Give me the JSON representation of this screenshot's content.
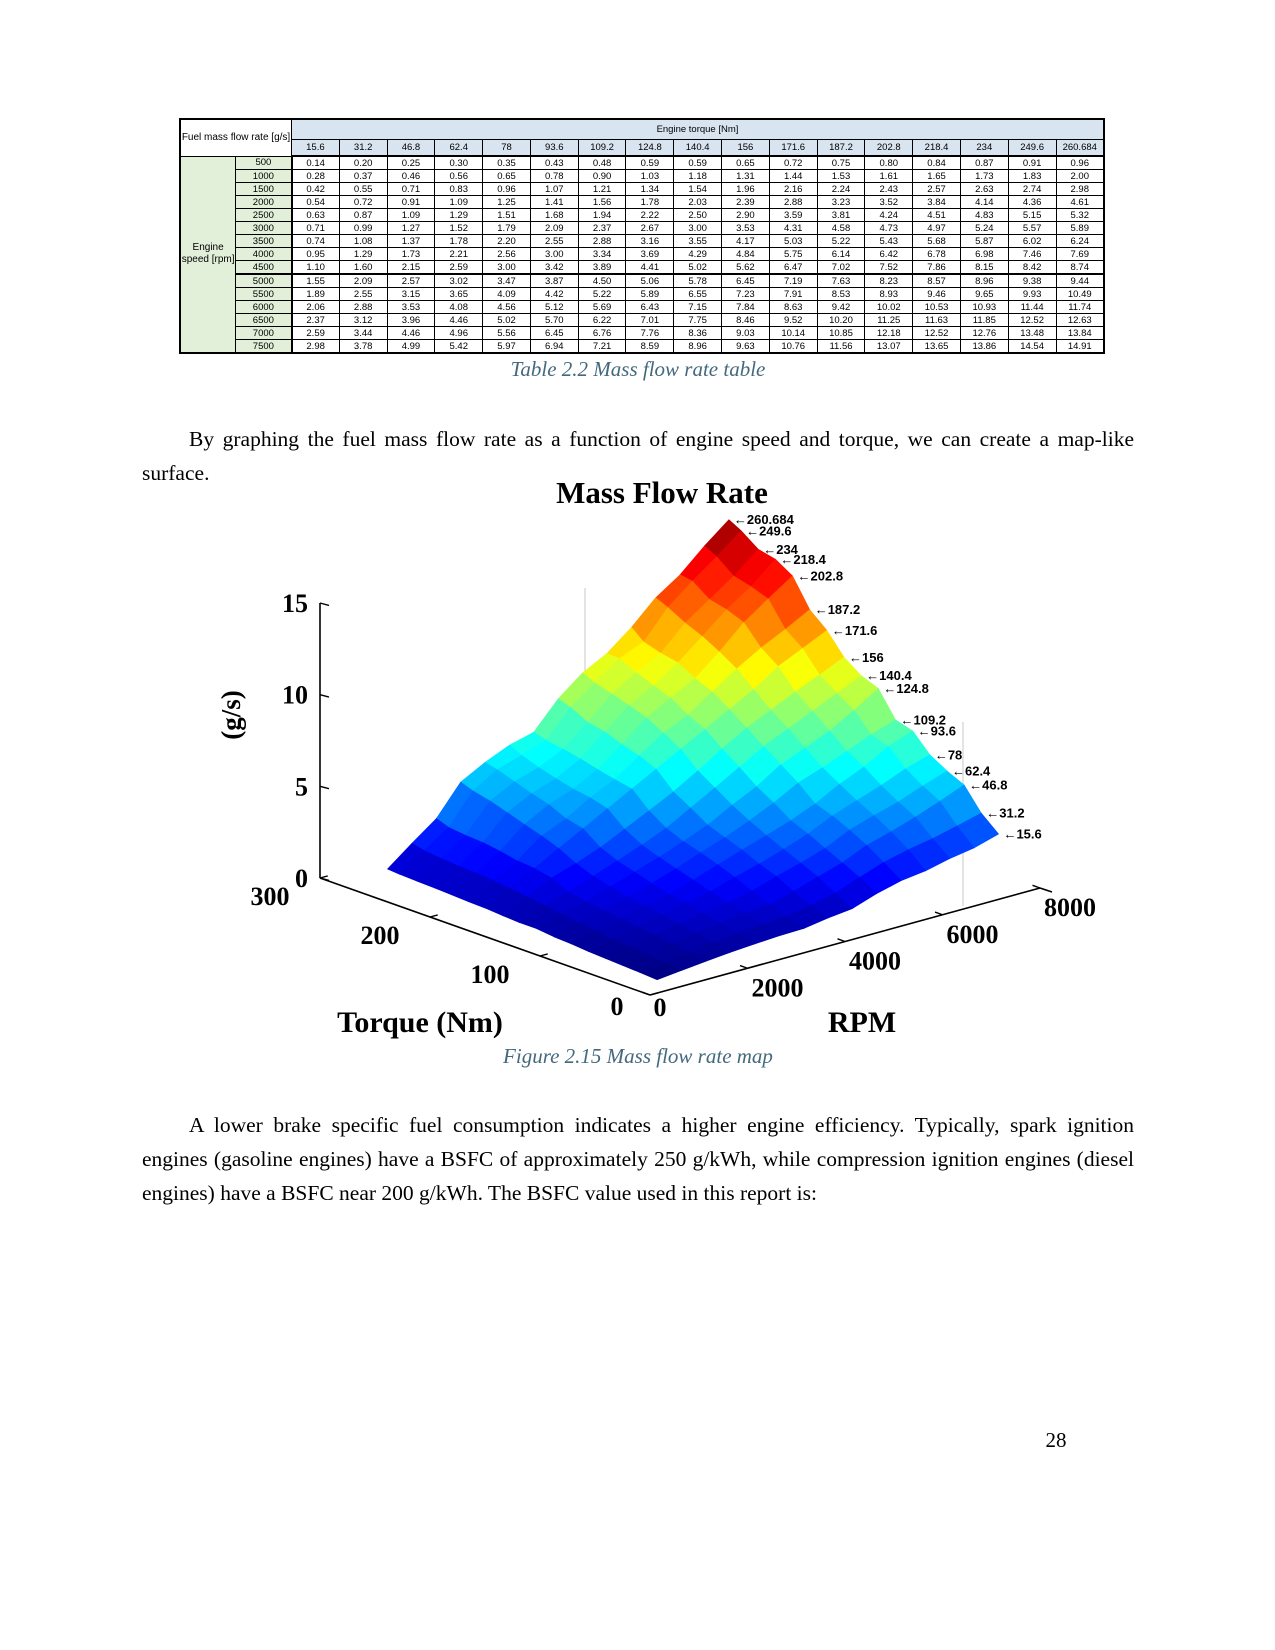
{
  "page": {
    "number": "28"
  },
  "table": {
    "caption": "Table 2.2 Mass flow rate table",
    "corner_label": "Fuel mass flow rate [g/s]",
    "column_group_label": "Engine torque [Nm]",
    "row_group_label": "Engine speed [rpm]"
  },
  "paragraphs": {
    "p1": "By graphing the fuel mass flow rate as a function of engine speed and torque, we can create a map-like surface.",
    "p2": "A lower brake specific fuel consumption indicates a higher engine efficiency. Typically, spark ignition engines (gasoline engines) have a BSFC of approximately 250 g/kWh, while compression ignition engines (diesel engines) have a BSFC near 200 g/kWh. The BSFC value used in this report is:"
  },
  "figure": {
    "caption": "Figure 2.15 Mass flow rate map"
  },
  "chart_data": {
    "type": "surface",
    "title": "Mass Flow Rate",
    "xlabel": "RPM",
    "ylabel": "Torque (Nm)",
    "zlabel": "(g/s)",
    "colormap": "jet",
    "edge_annotation_arrow": "←",
    "x_rpm": [
      500,
      1000,
      1500,
      2000,
      2500,
      3000,
      3500,
      4000,
      4500,
      5000,
      5500,
      6000,
      6500,
      7000,
      7500
    ],
    "y_torque": [
      15.6,
      31.2,
      46.8,
      62.4,
      78,
      93.6,
      109.2,
      124.8,
      140.4,
      156,
      171.6,
      187.2,
      202.8,
      218.4,
      234,
      249.6,
      260.684
    ],
    "z_gps": [
      [
        0.14,
        0.2,
        0.25,
        0.3,
        0.35,
        0.43,
        0.48,
        0.59,
        0.59,
        0.65,
        0.72,
        0.75,
        0.8,
        0.84,
        0.87,
        0.91,
        0.96
      ],
      [
        0.28,
        0.37,
        0.46,
        0.56,
        0.65,
        0.78,
        0.9,
        1.03,
        1.18,
        1.31,
        1.44,
        1.53,
        1.61,
        1.65,
        1.73,
        1.83,
        2.0
      ],
      [
        0.42,
        0.55,
        0.71,
        0.83,
        0.96,
        1.07,
        1.21,
        1.34,
        1.54,
        1.96,
        2.16,
        2.24,
        2.43,
        2.57,
        2.63,
        2.74,
        2.98
      ],
      [
        0.54,
        0.72,
        0.91,
        1.09,
        1.25,
        1.41,
        1.56,
        1.78,
        2.03,
        2.39,
        2.88,
        3.23,
        3.52,
        3.84,
        4.14,
        4.36,
        4.61
      ],
      [
        0.63,
        0.87,
        1.09,
        1.29,
        1.51,
        1.68,
        1.94,
        2.22,
        2.5,
        2.9,
        3.59,
        3.81,
        4.24,
        4.51,
        4.83,
        5.15,
        5.32
      ],
      [
        0.71,
        0.99,
        1.27,
        1.52,
        1.79,
        2.09,
        2.37,
        2.67,
        3.0,
        3.53,
        4.31,
        4.58,
        4.73,
        4.97,
        5.24,
        5.57,
        5.89
      ],
      [
        0.74,
        1.08,
        1.37,
        1.78,
        2.2,
        2.55,
        2.88,
        3.16,
        3.55,
        4.17,
        5.03,
        5.22,
        5.43,
        5.68,
        5.87,
        6.02,
        6.24
      ],
      [
        0.95,
        1.29,
        1.73,
        2.21,
        2.56,
        3.0,
        3.34,
        3.69,
        4.29,
        4.84,
        5.75,
        6.14,
        6.42,
        6.78,
        6.98,
        7.46,
        7.69
      ],
      [
        1.1,
        1.6,
        2.15,
        2.59,
        3.0,
        3.42,
        3.89,
        4.41,
        5.02,
        5.62,
        6.47,
        7.02,
        7.52,
        7.86,
        8.15,
        8.42,
        8.74
      ],
      [
        1.55,
        2.09,
        2.57,
        3.02,
        3.47,
        3.87,
        4.5,
        5.06,
        5.78,
        6.45,
        7.19,
        7.63,
        8.23,
        8.57,
        8.96,
        9.38,
        9.44
      ],
      [
        1.89,
        2.55,
        3.15,
        3.65,
        4.09,
        4.42,
        5.22,
        5.89,
        6.55,
        7.23,
        7.91,
        8.53,
        8.93,
        9.46,
        9.65,
        9.93,
        10.49
      ],
      [
        2.06,
        2.88,
        3.53,
        4.08,
        4.56,
        5.12,
        5.69,
        6.43,
        7.15,
        7.84,
        8.63,
        9.42,
        10.02,
        10.53,
        10.93,
        11.44,
        11.74
      ],
      [
        2.37,
        3.12,
        3.96,
        4.46,
        5.02,
        5.7,
        6.22,
        7.01,
        7.75,
        8.46,
        9.52,
        10.2,
        11.25,
        11.63,
        11.85,
        12.52,
        12.63
      ],
      [
        2.59,
        3.44,
        4.46,
        4.96,
        5.56,
        6.45,
        6.76,
        7.76,
        8.36,
        9.03,
        10.14,
        10.85,
        12.18,
        12.52,
        12.76,
        13.48,
        13.84
      ],
      [
        2.98,
        3.78,
        4.99,
        5.42,
        5.97,
        6.94,
        7.21,
        8.59,
        8.96,
        9.63,
        10.76,
        11.56,
        13.07,
        13.65,
        13.86,
        14.54,
        14.91
      ]
    ],
    "x_ticks": [
      0,
      2000,
      4000,
      6000,
      8000
    ],
    "y_ticks": [
      0,
      100,
      200,
      300
    ],
    "z_ticks": [
      0,
      5,
      10,
      15
    ],
    "xlim": [
      0,
      8000
    ],
    "ylim": [
      0,
      300
    ],
    "zlim": [
      0,
      15
    ]
  },
  "colors": {
    "caption_text": "#44697e",
    "table_header_blue": "#d8e4f0",
    "table_header_green": "#e2efd9"
  }
}
